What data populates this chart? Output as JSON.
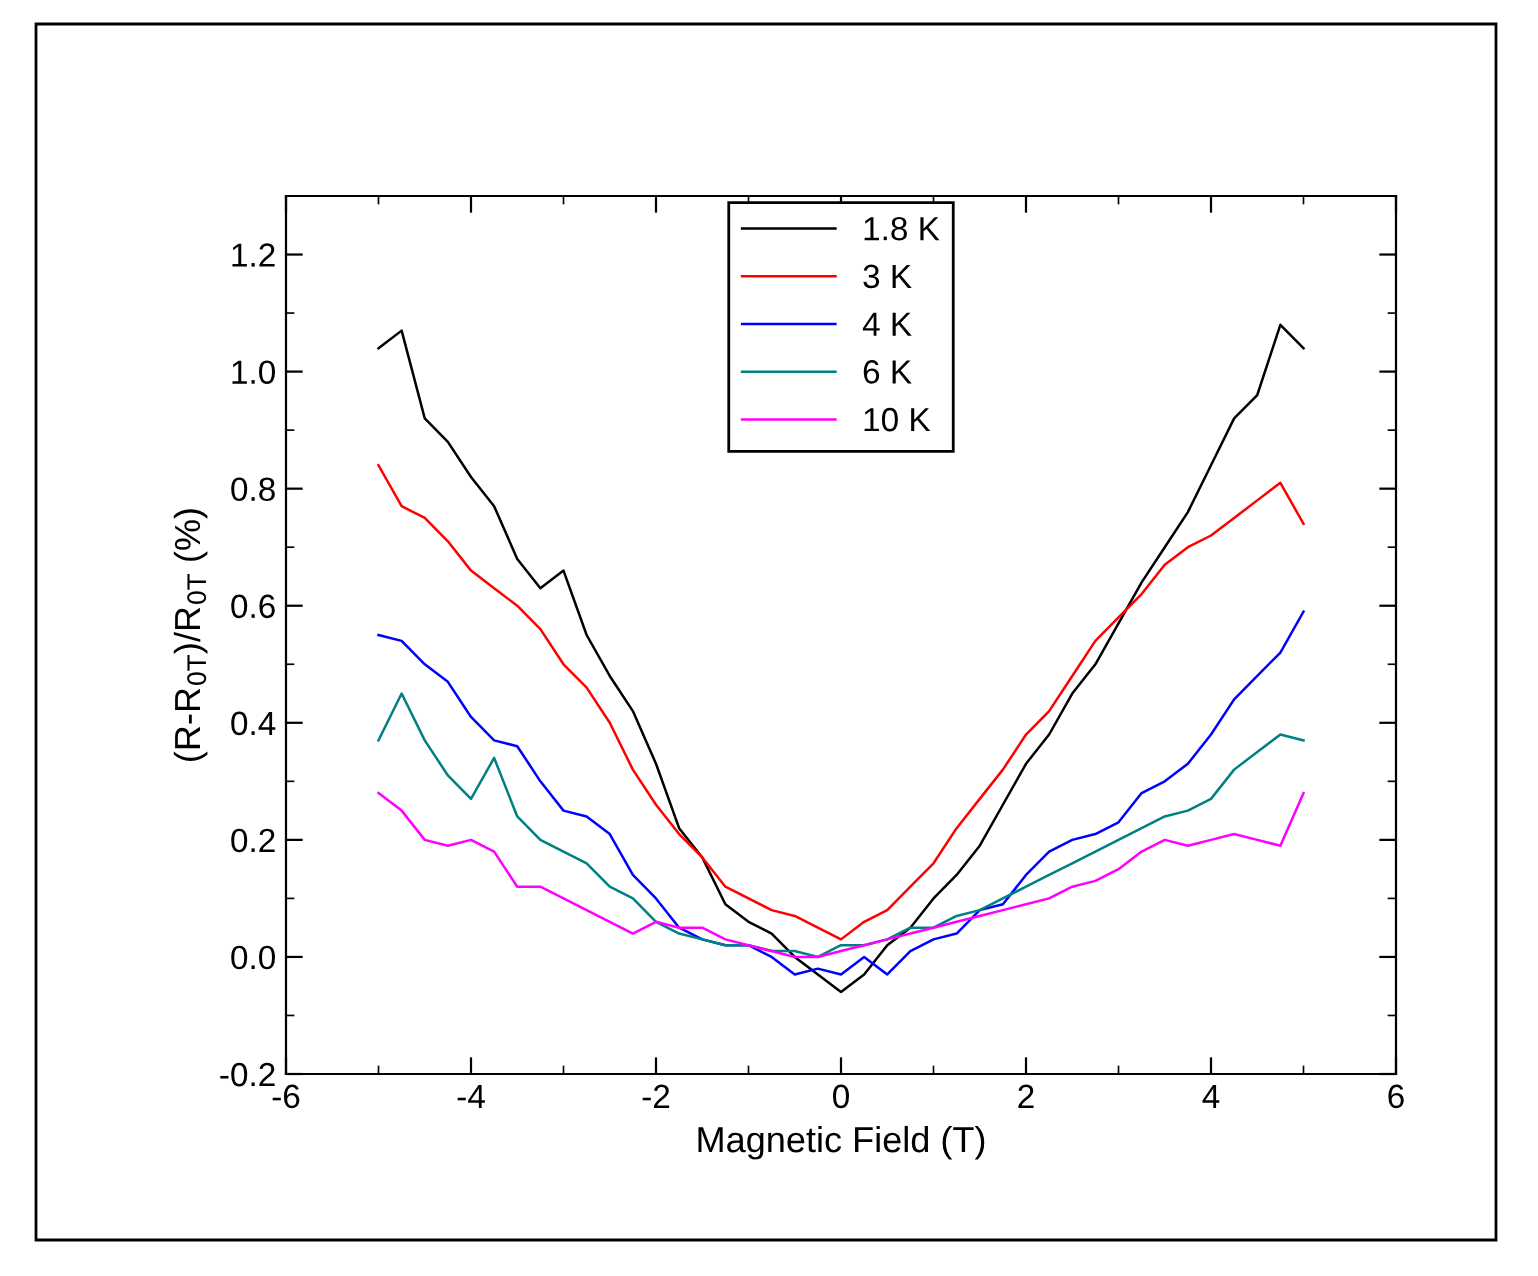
{
  "chart_data": {
    "type": "line",
    "xlabel": "Magnetic Field (T)",
    "ylabel": "(R-R$_{0T}$)/R$_{0T}$ (%)",
    "x": [
      -5,
      -4.75,
      -4.5,
      -4.25,
      -4,
      -3.75,
      -3.5,
      -3.25,
      -3,
      -2.75,
      -2.5,
      -2.25,
      -2,
      -1.75,
      -1.5,
      -1.25,
      -1,
      -0.75,
      -0.5,
      -0.25,
      0,
      0.25,
      0.5,
      0.75,
      1,
      1.25,
      1.5,
      1.75,
      2,
      2.25,
      2.5,
      2.75,
      3,
      3.25,
      3.5,
      3.75,
      4,
      4.25,
      4.5,
      4.75,
      5
    ],
    "series": [
      {
        "name": "1.8 K",
        "color": "#000000",
        "values": [
          1.04,
          1.07,
          0.92,
          0.88,
          0.82,
          0.77,
          0.68,
          0.63,
          0.66,
          0.55,
          0.48,
          0.42,
          0.33,
          0.22,
          0.17,
          0.09,
          0.06,
          0.04,
          0.0,
          -0.03,
          -0.06,
          -0.03,
          0.02,
          0.05,
          0.1,
          0.14,
          0.19,
          0.26,
          0.33,
          0.38,
          0.45,
          0.5,
          0.57,
          0.64,
          0.7,
          0.76,
          0.84,
          0.92,
          0.96,
          1.08,
          1.04
        ]
      },
      {
        "name": "3 K",
        "color": "#ff0000",
        "values": [
          0.84,
          0.77,
          0.75,
          0.71,
          0.66,
          0.63,
          0.6,
          0.56,
          0.5,
          0.46,
          0.4,
          0.32,
          0.26,
          0.21,
          0.17,
          0.12,
          0.1,
          0.08,
          0.07,
          0.05,
          0.03,
          0.06,
          0.08,
          0.12,
          0.16,
          0.22,
          0.27,
          0.32,
          0.38,
          0.42,
          0.48,
          0.54,
          0.58,
          0.62,
          0.67,
          0.7,
          0.72,
          0.75,
          0.78,
          0.81,
          0.74
        ]
      },
      {
        "name": "4 K",
        "color": "#0000ff",
        "values": [
          0.55,
          0.54,
          0.5,
          0.47,
          0.41,
          0.37,
          0.36,
          0.3,
          0.25,
          0.24,
          0.21,
          0.14,
          0.1,
          0.05,
          0.03,
          0.02,
          0.02,
          0.0,
          -0.03,
          -0.02,
          -0.03,
          0.0,
          -0.03,
          0.01,
          0.03,
          0.04,
          0.08,
          0.09,
          0.14,
          0.18,
          0.2,
          0.21,
          0.23,
          0.28,
          0.3,
          0.33,
          0.38,
          0.44,
          0.48,
          0.52,
          0.59
        ]
      },
      {
        "name": "6 K",
        "color": "#008080",
        "values": [
          0.37,
          0.45,
          0.37,
          0.31,
          0.27,
          0.34,
          0.24,
          0.2,
          0.18,
          0.16,
          0.12,
          0.1,
          0.06,
          0.04,
          0.03,
          0.02,
          0.02,
          0.01,
          0.01,
          0.0,
          0.02,
          0.02,
          0.03,
          0.05,
          0.05,
          0.07,
          0.08,
          0.1,
          0.12,
          0.14,
          0.16,
          0.18,
          0.2,
          0.22,
          0.24,
          0.25,
          0.27,
          0.32,
          0.35,
          0.38,
          0.37
        ]
      },
      {
        "name": "10 K",
        "color": "#ff00ff",
        "values": [
          0.28,
          0.25,
          0.2,
          0.19,
          0.2,
          0.18,
          0.12,
          0.12,
          0.1,
          0.08,
          0.06,
          0.04,
          0.06,
          0.05,
          0.05,
          0.03,
          0.02,
          0.01,
          0.0,
          0.0,
          0.01,
          0.02,
          0.03,
          0.04,
          0.05,
          0.06,
          0.07,
          0.08,
          0.09,
          0.1,
          0.12,
          0.13,
          0.15,
          0.18,
          0.2,
          0.19,
          0.2,
          0.21,
          0.2,
          0.19,
          0.28
        ]
      }
    ],
    "xlim": [
      -6,
      6
    ],
    "xticks": [
      -6,
      -4,
      -2,
      0,
      2,
      4,
      6
    ],
    "ylim": [
      -0.2,
      1.3
    ],
    "yticks": [
      {
        "value": -0.2,
        "label": "-0.2"
      },
      {
        "value": 0,
        "label": "0.0"
      },
      {
        "value": 0.2,
        "label": "0.2"
      },
      {
        "value": 0.4,
        "label": "0.4"
      },
      {
        "value": 0.6,
        "label": "0.6"
      },
      {
        "value": 0.8,
        "label": "0.8"
      },
      {
        "value": 1.0,
        "label": "1.0"
      },
      {
        "value": 1.2,
        "label": "1.2"
      }
    ],
    "legend": "top",
    "grid": false,
    "marker": "none",
    "line_style": "solid"
  }
}
